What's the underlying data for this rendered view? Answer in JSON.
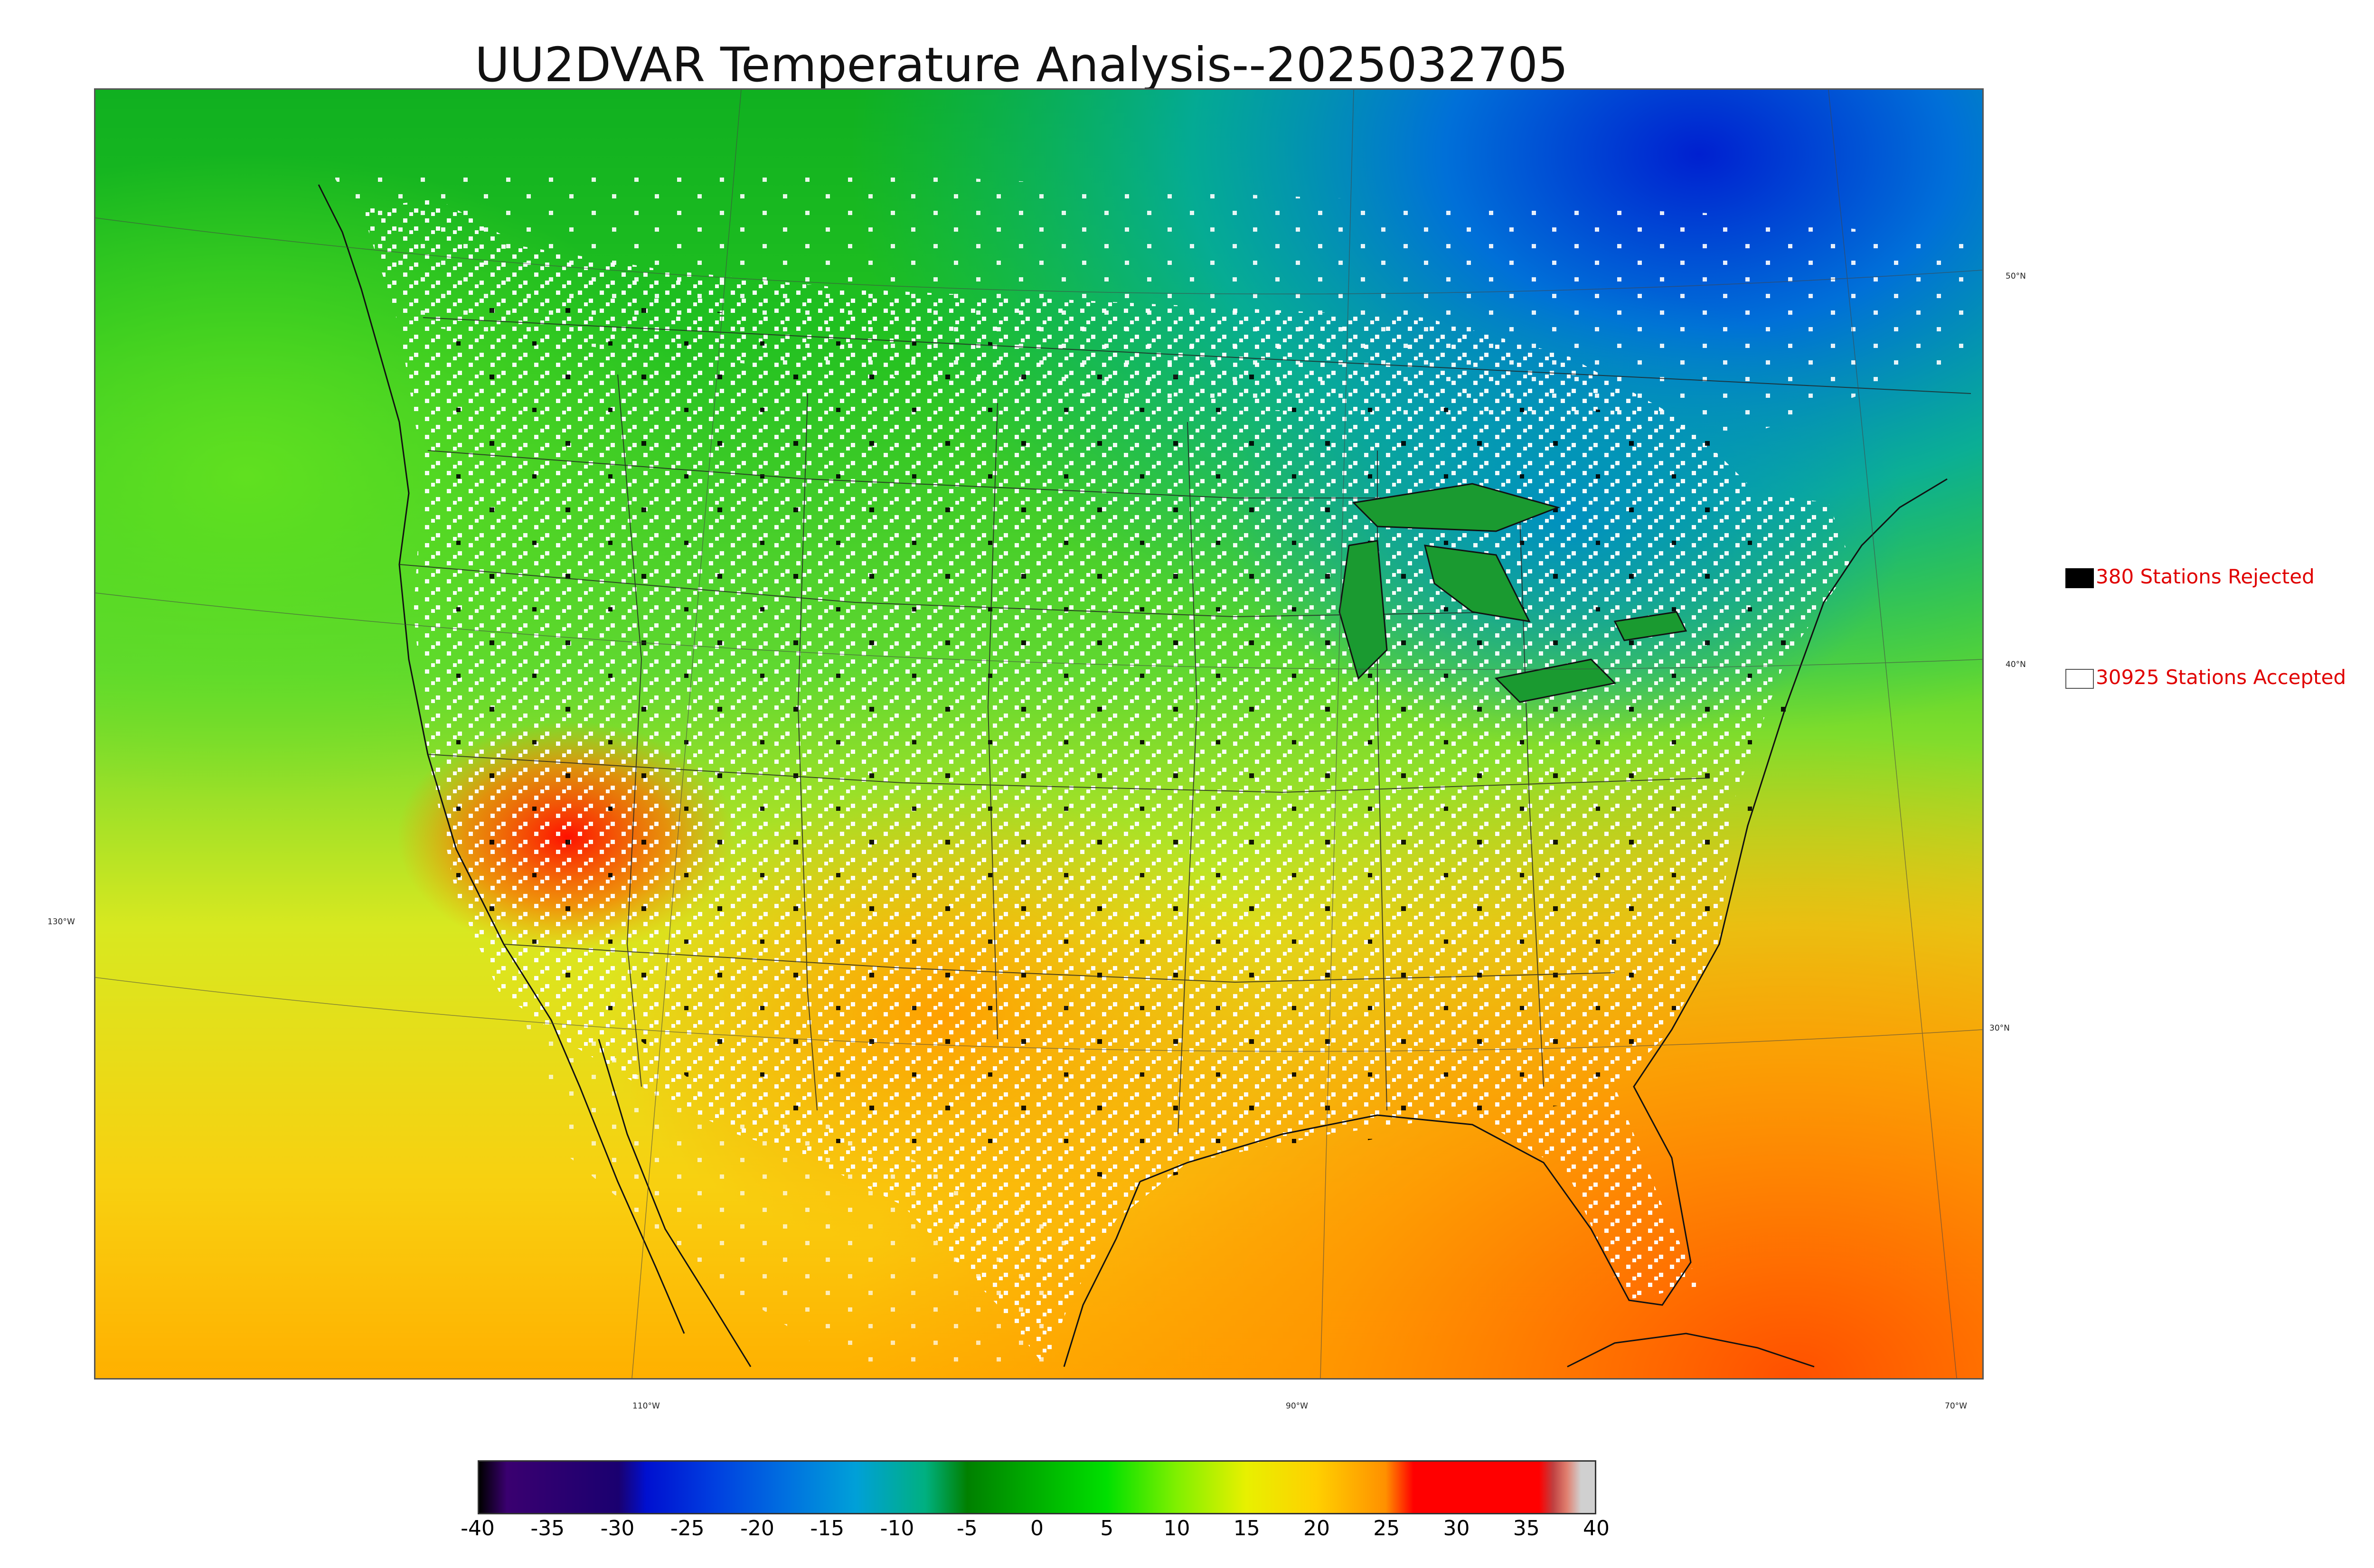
{
  "title": "UU2DVAR Temperature Analysis--2025032705",
  "graticule": {
    "lat_labels": [
      "50°N",
      "40°N",
      "30°N"
    ],
    "lon_labels": [
      "130°W",
      "110°W",
      "90°W",
      "70°W"
    ]
  },
  "legend": {
    "rejected": {
      "label": "380 Stations Rejected",
      "color": "#000000"
    },
    "accepted": {
      "label": "30925 Stations Accepted",
      "color": "#ffffff"
    }
  },
  "colorbar": {
    "unit_range": [
      -40,
      40
    ],
    "ticks": [
      "-40",
      "-35",
      "-30",
      "-25",
      "-20",
      "-15",
      "-10",
      "-5",
      "0",
      "5",
      "10",
      "15",
      "20",
      "25",
      "30",
      "35",
      "40"
    ],
    "stops": [
      {
        "v": -40,
        "color": "#000000"
      },
      {
        "v": -38,
        "color": "#3a0070"
      },
      {
        "v": -30,
        "color": "#1a0070"
      },
      {
        "v": -28,
        "color": "#0010d0"
      },
      {
        "v": -23,
        "color": "#0040e0"
      },
      {
        "v": -18,
        "color": "#0070e0"
      },
      {
        "v": -13,
        "color": "#00a0d8"
      },
      {
        "v": -8,
        "color": "#00b080"
      },
      {
        "v": -5,
        "color": "#008000"
      },
      {
        "v": 0,
        "color": "#00b000"
      },
      {
        "v": 5,
        "color": "#00e000"
      },
      {
        "v": 10,
        "color": "#80f000"
      },
      {
        "v": 15,
        "color": "#e8f000"
      },
      {
        "v": 20,
        "color": "#ffd000"
      },
      {
        "v": 25,
        "color": "#ff9000"
      },
      {
        "v": 27,
        "color": "#ff0000"
      },
      {
        "v": 36,
        "color": "#ff0000"
      },
      {
        "v": 37,
        "color": "#c04040"
      },
      {
        "v": 38,
        "color": "#e08070"
      },
      {
        "v": 39,
        "color": "#d0d0d0"
      },
      {
        "v": 40,
        "color": "#d0d0d0"
      }
    ]
  }
}
